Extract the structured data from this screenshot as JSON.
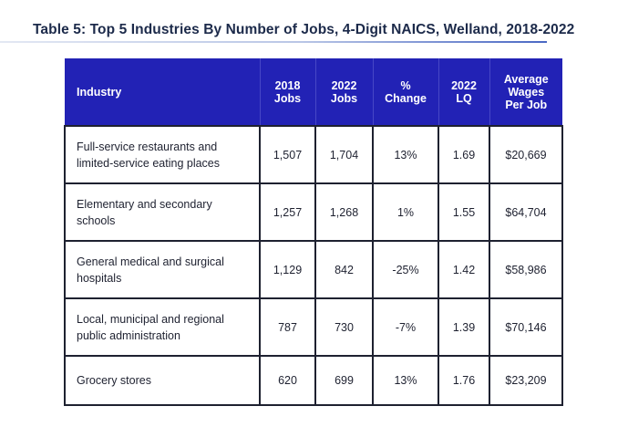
{
  "title": "Table 5: Top 5 Industries By Number of Jobs, 4-Digit NAICS, Welland, 2018-2022",
  "header": {
    "industry": "Industry",
    "jobs_2018": [
      "2018",
      "Jobs"
    ],
    "jobs_2022": [
      "2022",
      "Jobs"
    ],
    "pct_change": [
      "%",
      "Change"
    ],
    "lq_2022": [
      "2022",
      "LQ"
    ],
    "avg_wages": [
      "Average",
      "Wages",
      "Per Job"
    ]
  },
  "rows": [
    {
      "industry": [
        "Full-service restaurants and",
        "limited-service eating places"
      ],
      "jobs_2018": "1,507",
      "jobs_2022": "1,704",
      "pct_change": "13%",
      "lq_2022": "1.69",
      "avg_wages": "$20,669"
    },
    {
      "industry": [
        "Elementary and secondary",
        "schools"
      ],
      "jobs_2018": "1,257",
      "jobs_2022": "1,268",
      "pct_change": "1%",
      "lq_2022": "1.55",
      "avg_wages": "$64,704"
    },
    {
      "industry": [
        "General medical and surgical",
        "hospitals"
      ],
      "jobs_2018": "1,129",
      "jobs_2022": "842",
      "pct_change": "-25%",
      "lq_2022": "1.42",
      "avg_wages": "$58,986"
    },
    {
      "industry": [
        "Local, municipal and regional",
        "public administration"
      ],
      "jobs_2018": "787",
      "jobs_2022": "730",
      "pct_change": "-7%",
      "lq_2022": "1.39",
      "avg_wages": "$70,146"
    },
    {
      "industry": [
        "Grocery stores"
      ],
      "jobs_2018": "620",
      "jobs_2022": "699",
      "pct_change": "13%",
      "lq_2022": "1.76",
      "avg_wages": "$23,209"
    }
  ],
  "colors": {
    "header_bg": "#2222b5",
    "title_text": "#1c2a4a",
    "border": "#1e2130"
  }
}
